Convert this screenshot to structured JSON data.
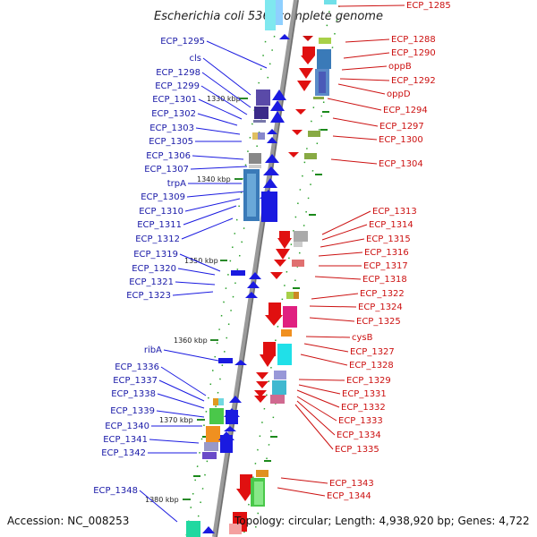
{
  "title": "Escherichia coli 536, complete genome",
  "footer": {
    "accession": "Accession: NC_008253",
    "info": "Topology: circular; Length: 4,938,920 bp; Genes: 4,722"
  },
  "scale_labels": [
    "1330 kbp",
    "1340 kbp",
    "1350 kbp",
    "1360 kbp",
    "1370 kbp",
    "1380 kbp"
  ],
  "left_genes": [
    "ECP_1295",
    "cls",
    "ECP_1298",
    "ECP_1299",
    "ECP_1301",
    "ECP_1302",
    "ECP_1303",
    "ECP_1305",
    "ECP_1306",
    "ECP_1307",
    "trpA",
    "ECP_1309",
    "ECP_1310",
    "ECP_1311",
    "ECP_1312",
    "ECP_1319",
    "ECP_1320",
    "ECP_1321",
    "ECP_1323",
    "ribA",
    "ECP_1336",
    "ECP_1337",
    "ECP_1338",
    "ECP_1339",
    "ECP_1340",
    "ECP_1341",
    "ECP_1342",
    "ECP_1348"
  ],
  "right_genes": [
    "ECP_1285",
    "ECP_1288",
    "ECP_1290",
    "oppB",
    "ECP_1292",
    "oppD",
    "ECP_1294",
    "ECP_1297",
    "ECP_1300",
    "ECP_1304",
    "ECP_1313",
    "ECP_1314",
    "ECP_1315",
    "ECP_1316",
    "ECP_1317",
    "ECP_1318",
    "ECP_1322",
    "ECP_1324",
    "ECP_1325",
    "cysB",
    "ECP_1327",
    "ECP_1328",
    "ECP_1329",
    "ECP_1331",
    "ECP_1332",
    "ECP_1333",
    "ECP_1334",
    "ECP_1335",
    "ECP_1343",
    "ECP_1344"
  ],
  "colors": {
    "forward": "#1a1aa8",
    "reverse": "#cc1111",
    "backbone": "#8a8a8a",
    "tick": "#1b8a1b"
  }
}
